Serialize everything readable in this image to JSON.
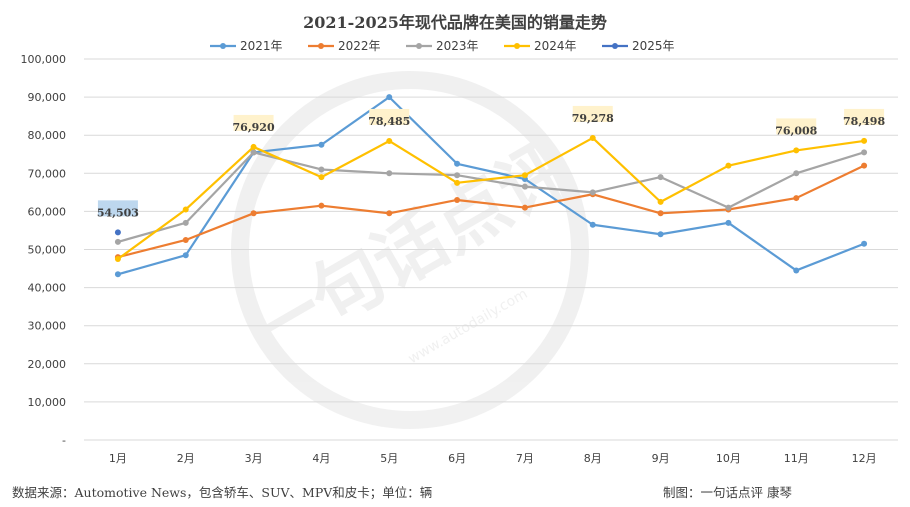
{
  "chart_data": {
    "type": "line",
    "title": "2021-2025年现代品牌在美国的销量走势",
    "categories": [
      "1月",
      "2月",
      "3月",
      "4月",
      "5月",
      "6月",
      "7月",
      "8月",
      "9月",
      "10月",
      "11月",
      "12月"
    ],
    "y_ticks": [
      "100,000",
      "90,000",
      "80,000",
      "70,000",
      "60,000",
      "50,000",
      "40,000",
      "30,000",
      "20,000",
      "10,000",
      "-"
    ],
    "ylim": [
      0,
      100000
    ],
    "grid": true,
    "legend_position": "top",
    "series": [
      {
        "name": "2021年",
        "color": "#5B9BD5",
        "values": [
          43500,
          48500,
          75500,
          77500,
          90000,
          72500,
          68500,
          56500,
          54000,
          57000,
          44500,
          51500
        ]
      },
      {
        "name": "2022年",
        "color": "#ED7D31",
        "values": [
          48000,
          52500,
          59500,
          61500,
          59500,
          63000,
          61000,
          64500,
          59500,
          60500,
          63500,
          72000
        ]
      },
      {
        "name": "2023年",
        "color": "#A5A5A5",
        "values": [
          52000,
          57000,
          75500,
          71000,
          70000,
          69500,
          66500,
          65000,
          69000,
          61000,
          70000,
          75500
        ]
      },
      {
        "name": "2024年",
        "color": "#FFC000",
        "values": [
          47500,
          60500,
          76920,
          69000,
          78485,
          67500,
          69500,
          79278,
          62500,
          72000,
          76008,
          78498
        ]
      },
      {
        "name": "2025年",
        "color": "#4472C4",
        "values": [
          54503,
          null,
          null,
          null,
          null,
          null,
          null,
          null,
          null,
          null,
          null,
          null
        ]
      }
    ],
    "data_labels": [
      {
        "series": 4,
        "index": 0,
        "text": "54,503",
        "bg": "#BDD7EE"
      },
      {
        "series": 3,
        "index": 2,
        "text": "76,920",
        "bg": "#FFF2CC"
      },
      {
        "series": 3,
        "index": 4,
        "text": "78,485",
        "bg": "#FFF2CC"
      },
      {
        "series": 3,
        "index": 7,
        "text": "79,278",
        "bg": "#FFF2CC"
      },
      {
        "series": 3,
        "index": 10,
        "text": "76,008",
        "bg": "#FFF2CC"
      },
      {
        "series": 3,
        "index": 11,
        "text": "78,498",
        "bg": "#FFF2CC"
      }
    ]
  },
  "footer": {
    "source": "数据来源：Automotive News，包含轿车、SUV、MPV和皮卡；单位：辆",
    "credit": "制图：一句话点评  康琴"
  },
  "watermark": {
    "brand": "一句话点评",
    "url": "www.autodaily.com"
  }
}
